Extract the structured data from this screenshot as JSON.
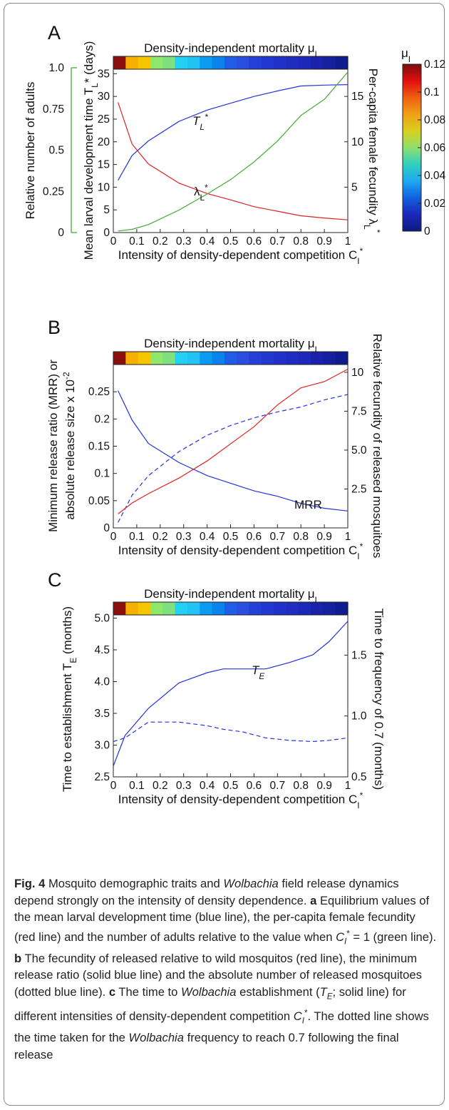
{
  "page": {
    "bg_color": "#ffffff",
    "line_colors": {
      "blue": "#2233dd",
      "red": "#dd2222",
      "green": "#44aa33"
    }
  },
  "mortality_bar": {
    "title": "Density-independent mortality μ",
    "title_sub": "I",
    "colors": [
      "#8b0f0f",
      "#f5b000",
      "#f7c400",
      "#8ee86c",
      "#7fe080",
      "#23d0f2",
      "#23c4f5",
      "#0b9bf0",
      "#0a84ec",
      "#1f5de6",
      "#2a4fe0",
      "#2440d8",
      "#2338d0",
      "#2030c8",
      "#1e2cc0",
      "#1b28b8",
      "#1a22ac",
      "#15209e",
      "#101b8e"
    ]
  },
  "colorbar": {
    "label": "μ",
    "label_sub": "I",
    "ticks": [
      "0.12",
      "0.1",
      "0.08",
      "0.06",
      "0.04",
      "0.02",
      "0"
    ],
    "gradient": [
      "#7a0d0d",
      "#e01010",
      "#f06010",
      "#f0a018",
      "#d8d020",
      "#8ee06c",
      "#30d0c0",
      "#20a8f0",
      "#1060e0",
      "#1c28b8",
      "#0d1a80"
    ]
  },
  "panels": {
    "a": {
      "letter": "A",
      "xlabel": "Intensity of density-dependent competition C",
      "xlabel_sub": "I",
      "xlabel_sup": "*",
      "ylabel_left": "Mean larval development time T",
      "ylabel_left_sub": "L",
      "ylabel_left_tail": "* (days)",
      "ylabel_right": "Per-capita female fecundity λ",
      "ylabel_right_sub": "L",
      "ylabel_right_tail": "*",
      "ylabel_outer": "Relative number of adults",
      "x_ticks": [
        "0",
        "0.1",
        "0.2",
        "0.3",
        "0.4",
        "0.5",
        "0.6",
        "0.7",
        "0.8",
        "0.9",
        "1"
      ],
      "y_left_ticks": [
        "0",
        "5",
        "10",
        "15",
        "20",
        "25",
        "30",
        "35"
      ],
      "y_right_ticks": [
        "5",
        "10",
        "15"
      ],
      "y_outer_ticks": [
        "0",
        "0.25",
        "0.5",
        "0.75",
        "1.0"
      ],
      "annot_t": "T",
      "annot_t_sub": "L",
      "annot_t_sup": "*",
      "annot_l": "λ",
      "annot_l_sub": "L",
      "annot_l_sup": "*"
    },
    "b": {
      "letter": "B",
      "xlabel": "Intensity of density-dependent competition C",
      "xlabel_sub": "I",
      "xlabel_sup": "*",
      "ylabel_left_1": "Minimum release ratio (MRR) or",
      "ylabel_left_2": "absolute release size x 10",
      "ylabel_left_2_sup": "-2",
      "ylabel_right": "Relative fecundity of released mosquitoes",
      "x_ticks": [
        "0",
        "0.1",
        "0.2",
        "0.3",
        "0.4",
        "0.5",
        "0.6",
        "0.7",
        "0.8",
        "0.9",
        "1"
      ],
      "y_left_ticks": [
        "0",
        "0.05",
        "0.1",
        "0.15",
        "0.2",
        "0.25"
      ],
      "y_right_ticks": [
        "2.5",
        "5.0",
        "7.5",
        "10"
      ],
      "annot": "MRR"
    },
    "c": {
      "letter": "C",
      "xlabel": "Intensity of density-dependent competition C",
      "xlabel_sub": "I",
      "xlabel_sup": "*",
      "ylabel_left": "Time to establishment T",
      "ylabel_left_sub": "E",
      "ylabel_left_tail": " (months)",
      "ylabel_right": "Time to frequency of 0.7 (months)",
      "x_ticks": [
        "0",
        "0.1",
        "0.2",
        "0.3",
        "0.4",
        "0.5",
        "0.6",
        "0.7",
        "0.8",
        "0.9",
        "1"
      ],
      "y_left_ticks": [
        "2.5",
        "3.0",
        "3.5",
        "4.0",
        "4.5",
        "5.0"
      ],
      "y_right_ticks": [
        "0.5",
        "1.0",
        "1.5"
      ],
      "annot": "T",
      "annot_sub": "E"
    }
  },
  "chart_data": [
    {
      "type": "line",
      "panel": "A",
      "x": [
        0.02,
        0.08,
        0.15,
        0.28,
        0.4,
        0.5,
        0.6,
        0.7,
        0.8,
        0.9,
        1.0
      ],
      "series": [
        {
          "name": "T_L*",
          "axis": "left",
          "color": "#2233dd",
          "values": [
            11.5,
            17.0,
            20.2,
            24.5,
            27.0,
            28.5,
            30.0,
            31.2,
            32.3,
            32.5,
            32.6
          ]
        },
        {
          "name": "λ_L*",
          "axis": "left",
          "color": "#dd2222",
          "values": [
            28.7,
            19.5,
            15.1,
            10.9,
            8.6,
            7.2,
            5.7,
            4.7,
            3.7,
            3.2,
            2.8
          ]
        },
        {
          "name": "Relative number of adults",
          "axis": "outer",
          "color": "#44aa33",
          "values": [
            0.01,
            0.02,
            0.05,
            0.14,
            0.24,
            0.33,
            0.44,
            0.57,
            0.73,
            0.83,
            1.0
          ]
        }
      ],
      "xlim": [
        0,
        1
      ],
      "ylim_left": [
        0,
        36
      ],
      "ylim_right": [
        0,
        18
      ],
      "ylim_outer": [
        0,
        1
      ]
    },
    {
      "type": "line",
      "panel": "B",
      "x": [
        0.02,
        0.08,
        0.15,
        0.28,
        0.4,
        0.5,
        0.6,
        0.7,
        0.8,
        0.9,
        1.0
      ],
      "series": [
        {
          "name": "MRR",
          "axis": "left",
          "style": "solid",
          "color": "#2233dd",
          "values": [
            0.252,
            0.198,
            0.155,
            0.12,
            0.096,
            0.082,
            0.068,
            0.058,
            0.045,
            0.036,
            0.031
          ]
        },
        {
          "name": "Absolute release size",
          "axis": "left",
          "style": "dashed",
          "color": "#2233dd",
          "values": [
            0.01,
            0.06,
            0.096,
            0.14,
            0.17,
            0.188,
            0.202,
            0.213,
            0.222,
            0.235,
            0.245
          ]
        },
        {
          "name": "Relative fecundity",
          "axis": "right",
          "style": "solid",
          "color": "#dd2222",
          "values": [
            0.9,
            1.6,
            2.2,
            3.2,
            4.3,
            5.4,
            6.5,
            7.9,
            9.0,
            9.4,
            10.2
          ]
        }
      ],
      "xlim": [
        0,
        1
      ],
      "ylim_left": [
        0,
        0.3
      ],
      "ylim_right": [
        0,
        10.5
      ]
    },
    {
      "type": "line",
      "panel": "C",
      "x": [
        0.0,
        0.05,
        0.15,
        0.28,
        0.4,
        0.47,
        0.55,
        0.65,
        0.75,
        0.85,
        0.92,
        1.0
      ],
      "series": [
        {
          "name": "T_E",
          "axis": "left",
          "style": "solid",
          "color": "#2233dd",
          "values": [
            2.67,
            3.15,
            3.58,
            3.98,
            4.14,
            4.2,
            4.2,
            4.2,
            4.3,
            4.42,
            4.63,
            4.95
          ]
        },
        {
          "name": "Time to frequency of 0.7",
          "axis": "right",
          "style": "dashed",
          "color": "#2233dd",
          "values": [
            0.79,
            0.82,
            0.95,
            0.95,
            0.92,
            0.89,
            0.87,
            0.82,
            0.8,
            0.79,
            0.8,
            0.82
          ]
        }
      ],
      "xlim": [
        0,
        1
      ],
      "ylim_left": [
        2.5,
        5.05
      ],
      "ylim_right": [
        0.5,
        1.83
      ]
    }
  ],
  "caption": {
    "fig_label": "Fig. 4",
    "text": "Mosquito demographic traits and Wolbachia field release dynamics depend strongly on the intensity of density dependence. a Equilibrium values of the mean larval development time (blue line), the per-capita female fecundity (red line) and the number of adults relative to the value when C_I* = 1 (green line). b The fecundity of released relative to wild mosquitos (red line), the minimum release ratio (solid blue line) and the absolute number of released mosquitoes (dotted blue line). c The time to Wolbachia establishment (T_E; solid line) for different intensities of density-dependent competition C_I*. The dotted line shows the time taken for the Wolbachia frequency to reach 0.7 following the final release"
  }
}
